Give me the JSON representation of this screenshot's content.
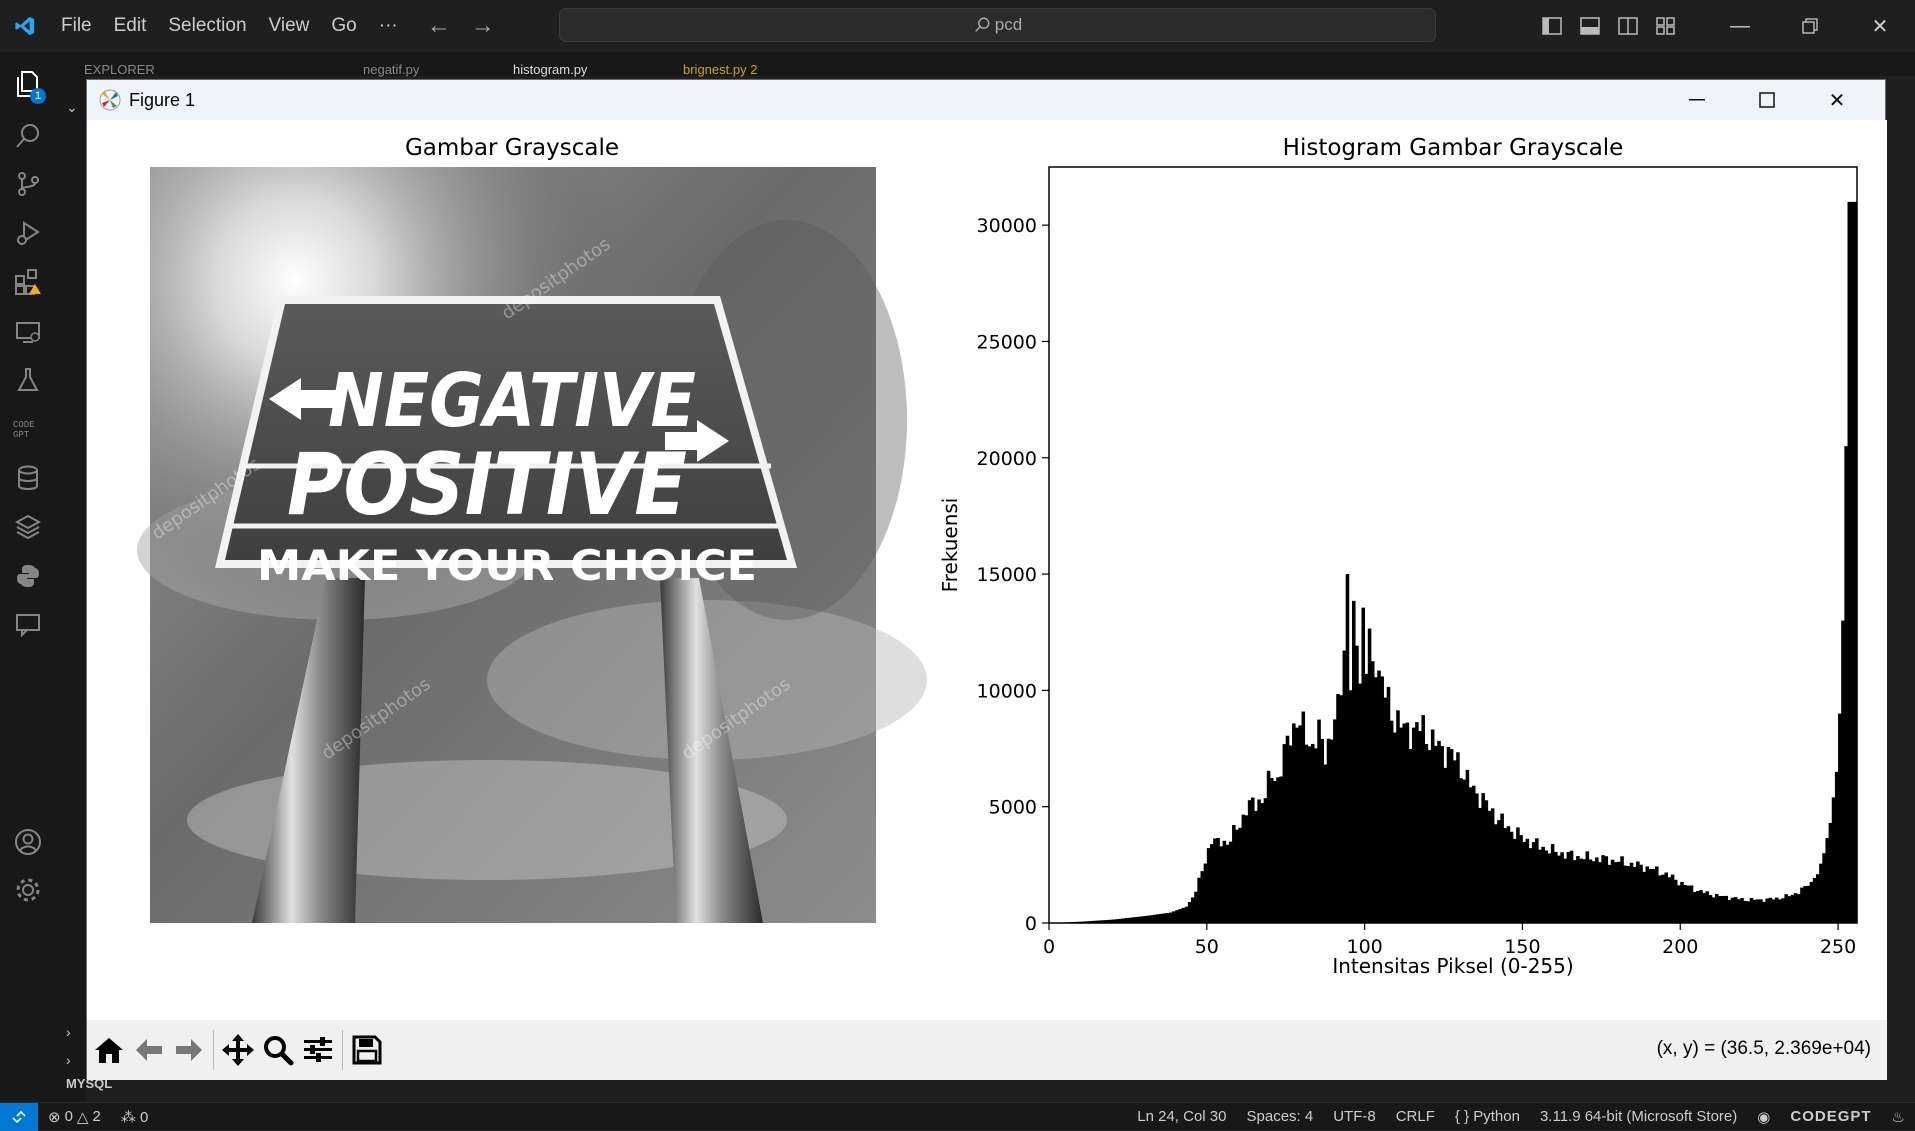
{
  "menu": {
    "file": "File",
    "edit": "Edit",
    "selection": "Selection",
    "view": "View",
    "go": "Go",
    "more": "···"
  },
  "search": {
    "text": "pcd"
  },
  "explorer": {
    "label": "EXPLORER",
    "mysql": "MYSQL"
  },
  "tabs": [
    {
      "label": "negatif.py"
    },
    {
      "label": "histogram.py"
    },
    {
      "label": "brignest.py 2"
    }
  ],
  "activity": {
    "explorer_badge": "1"
  },
  "figure": {
    "window_title": "Figure 1",
    "coords": "(x, y) = (36.5, 2.369e+04)"
  },
  "image_panel": {
    "title": "Gambar Grayscale",
    "sign_line1": "NEGATIVE",
    "sign_line2": "POSITIVE",
    "sign_line3": "MAKE YOUR CHOICE",
    "watermark": "depositphotos"
  },
  "chart_data": {
    "type": "bar",
    "title": "Histogram Gambar Grayscale",
    "xlabel": "Intensitas Piksel (0-255)",
    "ylabel": "Frekuensi",
    "xlim": [
      0,
      256
    ],
    "ylim": [
      0,
      32500
    ],
    "xticks": [
      0,
      50,
      100,
      150,
      200,
      250
    ],
    "yticks": [
      0,
      5000,
      10000,
      15000,
      20000,
      25000,
      30000
    ],
    "color": "#000000",
    "anchors": [
      [
        0,
        0
      ],
      [
        10,
        60
      ],
      [
        20,
        150
      ],
      [
        30,
        300
      ],
      [
        38,
        450
      ],
      [
        43,
        700
      ],
      [
        45,
        1100
      ],
      [
        47,
        1800
      ],
      [
        49,
        2600
      ],
      [
        51,
        3700
      ],
      [
        53,
        3400
      ],
      [
        56,
        3500
      ],
      [
        60,
        4200
      ],
      [
        62,
        5000
      ],
      [
        65,
        5100
      ],
      [
        68,
        5500
      ],
      [
        70,
        6400
      ],
      [
        72,
        6200
      ],
      [
        74,
        7200
      ],
      [
        76,
        8200
      ],
      [
        78,
        8700
      ],
      [
        80,
        8300
      ],
      [
        83,
        7600
      ],
      [
        85,
        8100
      ],
      [
        87,
        7400
      ],
      [
        89,
        8100
      ],
      [
        91,
        9100
      ],
      [
        93,
        12000
      ],
      [
        94,
        14700
      ],
      [
        95,
        10300
      ],
      [
        96,
        12800
      ],
      [
        98,
        11200
      ],
      [
        99,
        13100
      ],
      [
        100,
        10900
      ],
      [
        101,
        12300
      ],
      [
        102,
        10600
      ],
      [
        103,
        11600
      ],
      [
        105,
        10300
      ],
      [
        108,
        9000
      ],
      [
        110,
        8700
      ],
      [
        112,
        8300
      ],
      [
        115,
        8300
      ],
      [
        118,
        8400
      ],
      [
        120,
        7900
      ],
      [
        123,
        7600
      ],
      [
        126,
        7300
      ],
      [
        129,
        7000
      ],
      [
        132,
        6100
      ],
      [
        135,
        5600
      ],
      [
        138,
        5100
      ],
      [
        141,
        4600
      ],
      [
        144,
        4200
      ],
      [
        147,
        3900
      ],
      [
        150,
        3600
      ],
      [
        155,
        3300
      ],
      [
        160,
        3050
      ],
      [
        165,
        2900
      ],
      [
        170,
        2800
      ],
      [
        175,
        2750
      ],
      [
        180,
        2650
      ],
      [
        185,
        2500
      ],
      [
        190,
        2350
      ],
      [
        195,
        2100
      ],
      [
        200,
        1700
      ],
      [
        205,
        1400
      ],
      [
        210,
        1200
      ],
      [
        215,
        1100
      ],
      [
        220,
        1000
      ],
      [
        225,
        1000
      ],
      [
        230,
        1050
      ],
      [
        235,
        1200
      ],
      [
        240,
        1600
      ],
      [
        243,
        2100
      ],
      [
        245,
        3000
      ],
      [
        247,
        4300
      ],
      [
        249,
        6500
      ],
      [
        250,
        9000
      ],
      [
        251,
        13000
      ],
      [
        252,
        20500
      ],
      [
        253,
        31000
      ],
      [
        254,
        31000
      ],
      [
        255,
        31000
      ]
    ]
  }
}
